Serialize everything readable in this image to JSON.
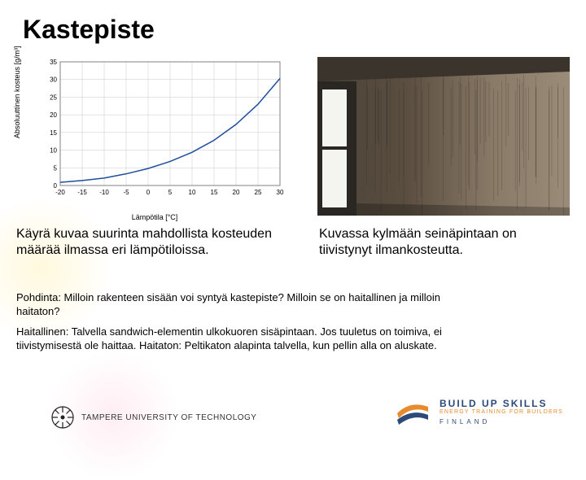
{
  "title": "Kastepiste",
  "chart": {
    "type": "line",
    "ylabel": "Absoluuttinen kosteus [g/m³]",
    "xlabel": "Lämpötila [°C]",
    "xlim": [
      -20,
      30
    ],
    "ylim": [
      0,
      35
    ],
    "xtick_step": 5,
    "ytick_step": 5,
    "xticks": [
      -20,
      -15,
      -10,
      -5,
      0,
      5,
      10,
      15,
      20,
      25,
      30
    ],
    "yticks": [
      0,
      5,
      10,
      15,
      20,
      25,
      30,
      35
    ],
    "grid_color": "#c8c8c8",
    "border_color": "#777777",
    "line_color": "#1f4e9c",
    "line_width": 1.5,
    "background_color": "#ffffff",
    "tick_fontsize": 8,
    "label_fontsize": 9,
    "x": [
      -20,
      -15,
      -10,
      -5,
      0,
      5,
      10,
      15,
      20,
      25,
      30
    ],
    "y": [
      0.9,
      1.4,
      2.1,
      3.3,
      4.8,
      6.8,
      9.4,
      12.8,
      17.3,
      23.0,
      30.3
    ]
  },
  "chart_caption": "Käyrä kuvaa suurinta mahdollista kosteuden määrää ilmassa eri lämpötiloissa.",
  "photo_caption": "Kuvassa kylmään seinäpintaan on tiivistynyt ilmankosteutta.",
  "para1": "Pohdinta: Milloin rakenteen sisään voi syntyä kastepiste? Milloin se on haitallinen ja milloin haitaton?",
  "para2": "Haitallinen: Talvella sandwich-elementin ulkokuoren sisäpintaan. Jos tuuletus on toimiva, ei tiivistymisestä ole haittaa. Haitaton: Peltikaton alapinta talvella, kun pellin alla on aluskate.",
  "footer": {
    "uni": "TAMPERE UNIVERSITY OF TECHNOLOGY",
    "bus_line1": "BUILD UP SKILLS",
    "bus_line2": "ENERGY TRAINING FOR BUILDERS",
    "bus_line3": "FINLAND",
    "bus_mark_color1": "#e88b2e",
    "bus_mark_color2": "#2b4a7a"
  },
  "photo": {
    "wall_base": "#8a7a68",
    "wall_dark": "#5a4e40",
    "window_light": "#f5f5ef",
    "frame": "#2a2622",
    "ceiling": "#3a342c"
  }
}
